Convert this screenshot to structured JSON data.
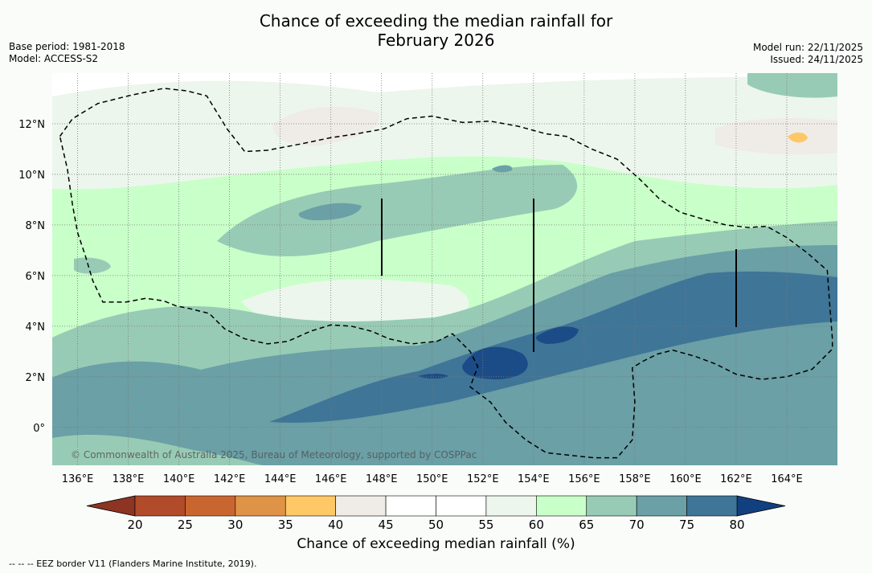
{
  "title": {
    "line1": "Chance of exceeding the median rainfall for",
    "line2": "February 2026"
  },
  "meta": {
    "base_period": "Base period: 1981-2018",
    "model": "Model: ACCESS-S2",
    "model_run": "Model run: 22/11/2025",
    "issued": "Issued: 24/11/2025"
  },
  "map": {
    "lon_labels": [
      "136°E",
      "138°E",
      "140°E",
      "142°E",
      "144°E",
      "146°E",
      "148°E",
      "150°E",
      "152°E",
      "154°E",
      "156°E",
      "158°E",
      "160°E",
      "162°E",
      "164°E"
    ],
    "lat_labels": [
      "12°N",
      "10°N",
      "8°N",
      "6°N",
      "4°N",
      "2°N",
      "0°"
    ],
    "lon_values": [
      136,
      138,
      140,
      142,
      144,
      146,
      148,
      150,
      152,
      154,
      156,
      158,
      160,
      162,
      164
    ],
    "lat_values": [
      12,
      10,
      8,
      6,
      4,
      2,
      0
    ],
    "extent": {
      "lon_min": 135.0,
      "lon_max": 166.0,
      "lat_min": -1.5,
      "lat_max": 14.0
    },
    "copyright": "© Commonwealth of Australia 2025, Bureau of Meteorology, supported by COSPPac",
    "eez_border": [
      [
        135.3,
        11.5
      ],
      [
        135.8,
        12.2
      ],
      [
        136.8,
        12.8
      ],
      [
        138.0,
        13.1
      ],
      [
        139.4,
        13.4
      ],
      [
        140.3,
        13.3
      ],
      [
        141.1,
        13.1
      ],
      [
        141.9,
        11.8
      ],
      [
        142.6,
        10.9
      ],
      [
        143.5,
        10.95
      ],
      [
        144.8,
        11.2
      ],
      [
        146.0,
        11.45
      ],
      [
        147.0,
        11.6
      ],
      [
        148.1,
        11.8
      ],
      [
        149.0,
        12.2
      ],
      [
        150.0,
        12.3
      ],
      [
        151.2,
        12.05
      ],
      [
        152.3,
        12.1
      ],
      [
        153.4,
        11.9
      ],
      [
        154.5,
        11.6
      ],
      [
        155.3,
        11.5
      ],
      [
        156.3,
        11.0
      ],
      [
        157.3,
        10.6
      ],
      [
        158.2,
        9.8
      ],
      [
        159.0,
        9.0
      ],
      [
        159.8,
        8.5
      ],
      [
        160.8,
        8.2
      ],
      [
        161.6,
        8.0
      ],
      [
        162.5,
        7.9
      ],
      [
        163.2,
        7.95
      ],
      [
        164.0,
        7.5
      ],
      [
        164.8,
        6.9
      ],
      [
        165.6,
        6.2
      ],
      [
        165.7,
        4.8
      ],
      [
        165.8,
        3.5
      ],
      [
        165.8,
        3.1
      ],
      [
        165.0,
        2.3
      ],
      [
        164.0,
        2.0
      ],
      [
        163.0,
        1.9
      ],
      [
        162.0,
        2.1
      ],
      [
        161.2,
        2.5
      ],
      [
        160.4,
        2.8
      ],
      [
        159.5,
        3.05
      ],
      [
        158.9,
        2.9
      ],
      [
        158.3,
        2.6
      ],
      [
        157.9,
        2.35
      ],
      [
        158.0,
        1.0
      ],
      [
        157.9,
        -0.5
      ],
      [
        157.3,
        -1.2
      ],
      [
        156.4,
        -1.2
      ],
      [
        155.4,
        -1.1
      ],
      [
        154.5,
        -1.0
      ],
      [
        153.7,
        -0.5
      ],
      [
        152.9,
        0.2
      ],
      [
        152.3,
        1.0
      ],
      [
        151.5,
        1.6
      ],
      [
        151.8,
        2.4
      ],
      [
        151.5,
        3.0
      ],
      [
        150.8,
        3.7
      ],
      [
        150.2,
        3.4
      ],
      [
        149.2,
        3.3
      ],
      [
        148.3,
        3.5
      ],
      [
        147.6,
        3.8
      ],
      [
        146.8,
        4.0
      ],
      [
        146.0,
        4.05
      ],
      [
        145.2,
        3.8
      ],
      [
        144.3,
        3.4
      ],
      [
        143.5,
        3.3
      ],
      [
        142.6,
        3.5
      ],
      [
        141.8,
        3.9
      ],
      [
        141.2,
        4.5
      ],
      [
        140.4,
        4.7
      ],
      [
        139.9,
        4.8
      ],
      [
        139.4,
        5.0
      ],
      [
        138.7,
        5.1
      ],
      [
        137.9,
        4.95
      ],
      [
        137.0,
        4.95
      ],
      [
        136.6,
        5.8
      ],
      [
        136.3,
        6.8
      ],
      [
        136.0,
        7.7
      ],
      [
        135.8,
        8.8
      ],
      [
        135.6,
        10.2
      ],
      [
        135.3,
        11.5
      ]
    ]
  },
  "colorbar": {
    "title": "Chance of exceeding median rainfall (%)",
    "ticks": [
      "20",
      "25",
      "30",
      "35",
      "40",
      "45",
      "50",
      "55",
      "60",
      "65",
      "70",
      "75",
      "80"
    ],
    "tick_values": [
      20,
      25,
      30,
      35,
      40,
      45,
      50,
      55,
      60,
      65,
      70,
      75,
      80
    ],
    "colors": [
      "#b14b29",
      "#c9662f",
      "#df9346",
      "#fdc865",
      "#efebe6",
      "#ffffff",
      "#ffffff",
      "#ecf6ec",
      "#c9ffc9",
      "#98cbb5",
      "#6aa0a6",
      "#3f7597",
      "#1c4c87"
    ],
    "under_color": "#8d3422",
    "over_color": "#123f80"
  },
  "footnote": "--  --  -- EEZ border V11 (Flanders Marine Institute, 2019)."
}
